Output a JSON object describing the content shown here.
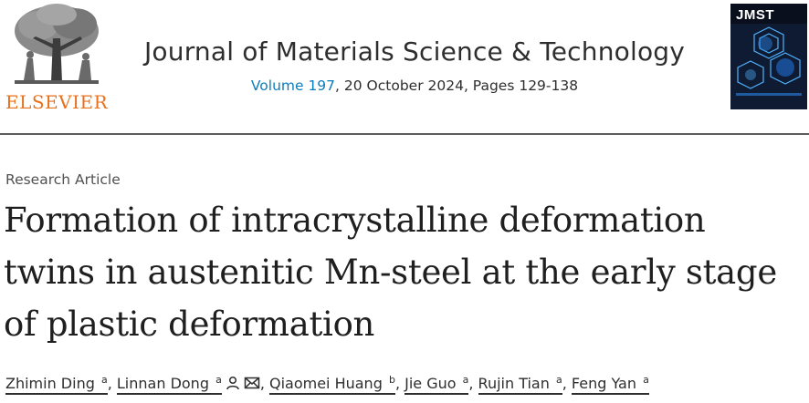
{
  "publisher": {
    "name": "ELSEVIER"
  },
  "journal": {
    "title": "Journal of Materials Science & Technology",
    "volume": "Volume 197",
    "date_pages": ", 20 October 2024, Pages 129-138"
  },
  "cover": {
    "title": "JMST"
  },
  "article": {
    "type": "Research Article",
    "title": "Formation of intracrystalline deformation twins in austenitic Mn-steel at the early stage of plastic deformation"
  },
  "authors": [
    {
      "name": "Zhimin Ding",
      "aff": "a"
    },
    {
      "name": "Linnan Dong",
      "aff": "a",
      "icons": [
        "person-icon",
        "envelope-icon"
      ]
    },
    {
      "name": "Qiaomei Huang",
      "aff": "b"
    },
    {
      "name": "Jie Guo",
      "aff": "a"
    },
    {
      "name": "Rujin Tian",
      "aff": "a"
    },
    {
      "name": "Feng Yan",
      "aff": "a"
    }
  ],
  "colors": {
    "publisher_orange": "#e9711c",
    "link_blue": "#0c7dbb",
    "text": "#1f1f1f",
    "cover_bg": "#0a0f1d"
  }
}
